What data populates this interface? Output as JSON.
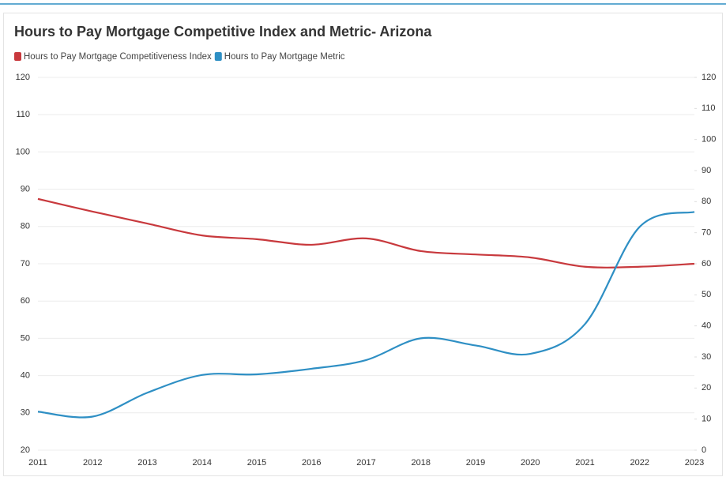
{
  "chart_data": {
    "type": "line",
    "title": "Hours to Pay Mortgage Competitive Index and Metric- Arizona",
    "categories": [
      "2011",
      "2012",
      "2013",
      "2014",
      "2015",
      "2016",
      "2017",
      "2018",
      "2019",
      "2020",
      "2021",
      "2022",
      "2023"
    ],
    "series": [
      {
        "name": "Hours to Pay Mortgage Competitiveness Index",
        "color": "#c8393d",
        "values": [
          87.4,
          84,
          80.8,
          77.6,
          76.6,
          75.1,
          76.8,
          73.4,
          72.5,
          71.7,
          69.2,
          69.2,
          70
        ]
      },
      {
        "name": "Hours to Pay Mortgage Metric",
        "color": "#2e8fc4",
        "axis": "y2",
        "values": [
          12.4,
          10.8,
          18.5,
          24.2,
          24.4,
          26.2,
          29,
          36,
          33.7,
          31,
          40.6,
          71.9,
          76.7
        ]
      }
    ],
    "ylim": [
      20,
      120
    ],
    "yticks": [
      20,
      30,
      40,
      50,
      60,
      70,
      80,
      90,
      100,
      110,
      120
    ],
    "y2lim": [
      0,
      120
    ],
    "y2ticks": [
      0,
      10,
      20,
      30,
      40,
      50,
      60,
      70,
      80,
      90,
      100,
      110,
      120
    ],
    "grid": true,
    "legend": "top-left"
  }
}
